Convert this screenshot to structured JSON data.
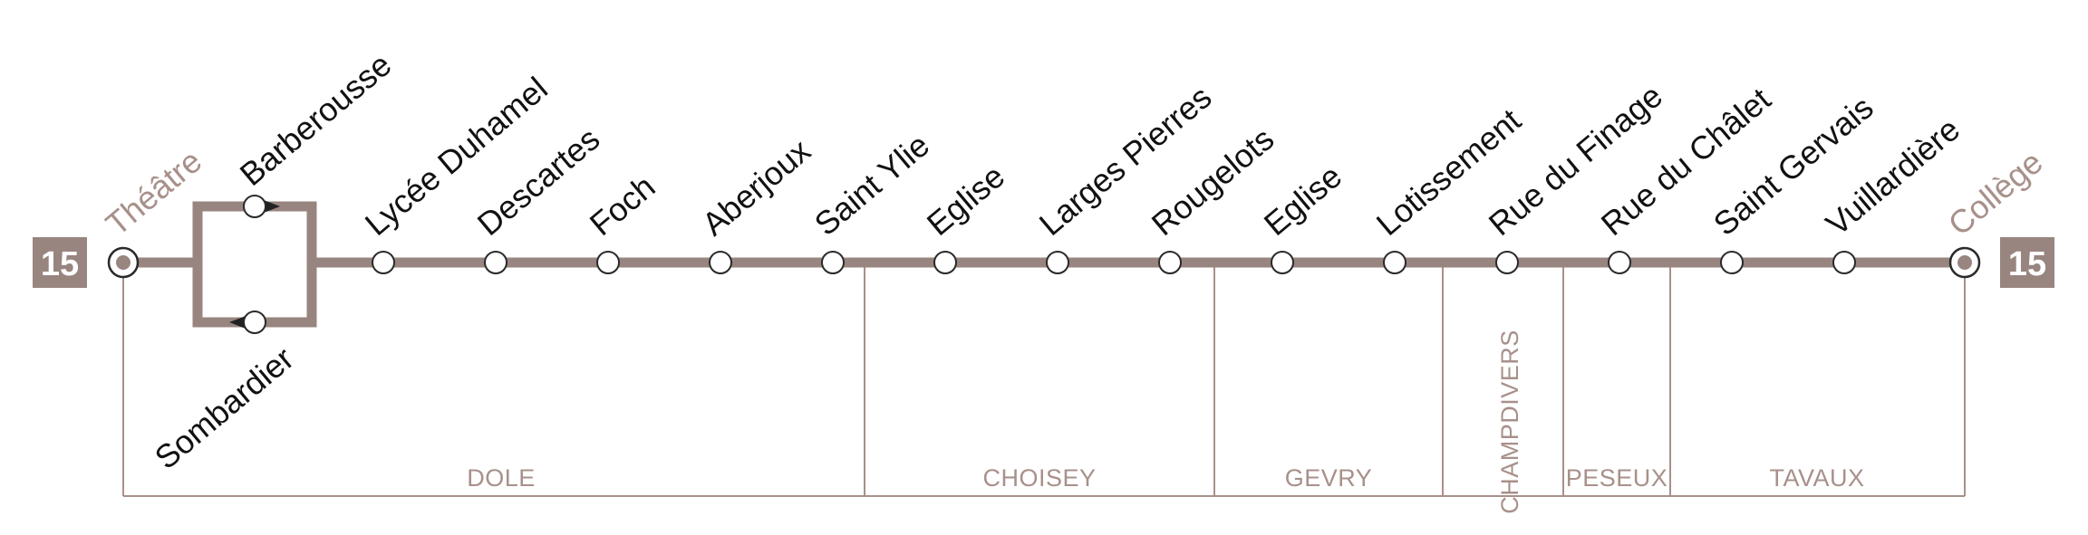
{
  "line": {
    "number": "15",
    "color": "#988580",
    "terminus_start": "Théâtre",
    "terminus_end": "Collège"
  },
  "loop": {
    "upper_stop": "Barberousse",
    "lower_stop": "Sombardier"
  },
  "stops": [
    "Lycée Duhamel",
    "Descartes",
    "Foch",
    "Aberjoux",
    "Saint Ylie",
    "Eglise",
    "Larges Pierres",
    "Rougelots",
    "Eglise",
    "Lotissement",
    "Rue du Finage",
    "Rue du Châlet",
    "Saint Gervais",
    "Vuillardière"
  ],
  "communes": [
    "DOLE",
    "CHOISEY",
    "GEVRY",
    "CHAMPDIVERS",
    "PESEUX",
    "TAVAUX"
  ]
}
